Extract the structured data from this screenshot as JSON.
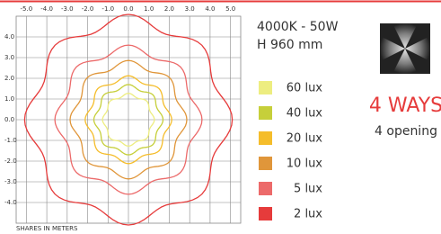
{
  "chart_data": {
    "type": "isolux",
    "info": [
      "4000K - 50W",
      "H 960 mm"
    ],
    "badge": "4 WAYS",
    "badge_sub": "4 opening",
    "xlabel": "SHARES IN METERS",
    "xlim": [
      -5.5,
      5.5
    ],
    "ylim": [
      -5,
      5
    ],
    "xticks": [
      {
        "value": -5,
        "label": "-5.0"
      },
      {
        "value": -4,
        "label": "-4.0"
      },
      {
        "value": -3,
        "label": "-3.0"
      },
      {
        "value": -2,
        "label": "-2.0"
      },
      {
        "value": -1,
        "label": "-1.0"
      },
      {
        "value": 0,
        "label": "0.0"
      },
      {
        "value": 1,
        "label": "1.0"
      },
      {
        "value": 2,
        "label": "2.0"
      },
      {
        "value": 3,
        "label": "3.0"
      },
      {
        "value": 4,
        "label": "4.0"
      },
      {
        "value": 5,
        "label": "5.0"
      }
    ],
    "yticks": [
      {
        "value": 4,
        "label": "4.0"
      },
      {
        "value": 3,
        "label": "3.0"
      },
      {
        "value": 2,
        "label": "2.0"
      },
      {
        "value": 1,
        "label": "1.0"
      },
      {
        "value": 0,
        "label": "0.0"
      },
      {
        "value": -1,
        "label": "-1.0"
      },
      {
        "value": -2,
        "label": "-2.0"
      },
      {
        "value": -3,
        "label": "-3.0"
      },
      {
        "value": -4,
        "label": "-4.0"
      }
    ],
    "grid": true,
    "series": [
      {
        "name": "60 lux",
        "color": "#eded80",
        "radius": 1.2
      },
      {
        "name": "40 lux",
        "color": "#c6cf3a",
        "radius": 1.6
      },
      {
        "name": "20 lux",
        "color": "#f5bd2b",
        "radius": 2.0
      },
      {
        "name": "10 lux",
        "color": "#e0963a",
        "radius": 2.7
      },
      {
        "name": "5 lux",
        "color": "#ec6a6a",
        "radius": 3.4
      },
      {
        "name": "2 lux",
        "color": "#e63b3b",
        "radius": 4.8
      }
    ]
  }
}
